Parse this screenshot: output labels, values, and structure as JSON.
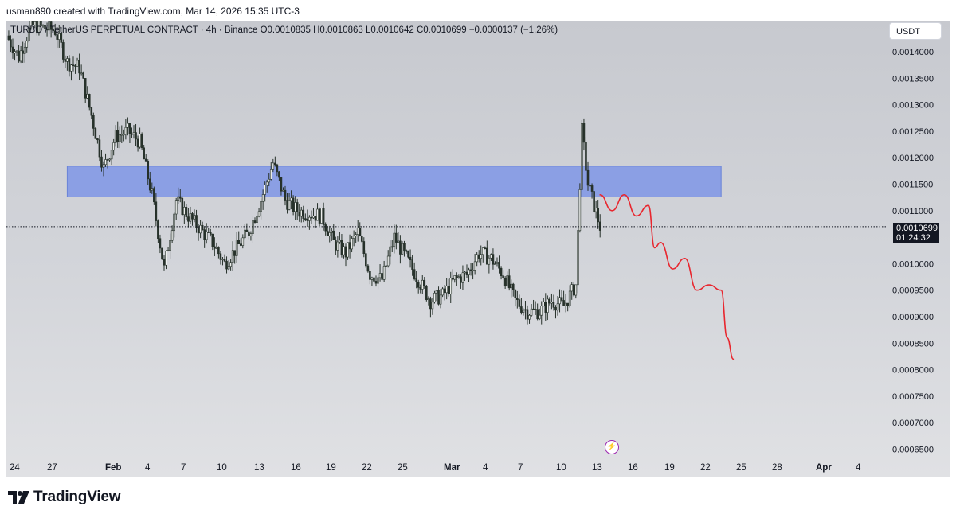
{
  "caption": "usman890 created with TradingView.com, Mar 14, 2026 15:35 UTC-3",
  "header": {
    "symbol": "TURBO / TetherUS PERPETUAL CONTRACT · 4h · Binance",
    "open": "O0.0010835",
    "high": "H0.0010863",
    "low": "L0.0010642",
    "close": "C0.0010699",
    "change": "−0.0000137 (−1.26%)"
  },
  "currency_button": "USDT",
  "last_price": {
    "price": "0.0010699",
    "countdown": "01:24:32"
  },
  "brand": "TradingView",
  "colors": {
    "candle": "#26312a",
    "zone": "#7f97e6",
    "projection": "#e8262e",
    "flash": "#9c27b0"
  },
  "chart_data": {
    "type": "candlestick",
    "x_labels": [
      "24",
      "27",
      "Feb",
      "4",
      "7",
      "10",
      "13",
      "16",
      "19",
      "22",
      "25",
      "Mar",
      "4",
      "7",
      "10",
      "13",
      "16",
      "19",
      "22",
      "25",
      "28",
      "Apr",
      "4"
    ],
    "y_ticks": [
      "0.0014000",
      "0.0013500",
      "0.0013000",
      "0.0012500",
      "0.0012000",
      "0.0011500",
      "0.0011000",
      "0.0010000",
      "0.0009500",
      "0.0009000",
      "0.0008500",
      "0.0008000",
      "0.0007500",
      "0.0007000",
      "0.0006500"
    ],
    "ylim": [
      0.00064,
      0.00144
    ],
    "last_close": 0.0010699,
    "resistance_zone": {
      "low": 0.001126,
      "high": 0.001184,
      "from": "Jan 29",
      "to": "Mar 24"
    },
    "price_path": [
      [
        "Jan 24",
        0.00143
      ],
      [
        "Jan 25",
        0.00139
      ],
      [
        "Jan 26",
        0.00145
      ],
      [
        "Jan 28",
        0.00144
      ],
      [
        "Jan 29",
        0.00138
      ],
      [
        "Jan 30",
        0.00137
      ],
      [
        "Jan 31",
        0.00128
      ],
      [
        "Feb 1",
        0.00118
      ],
      [
        "Feb 2",
        0.00124
      ],
      [
        "Feb 3",
        0.00125
      ],
      [
        "Feb 4",
        0.00123
      ],
      [
        "Feb 5",
        0.00113
      ],
      [
        "Feb 6",
        0.00099
      ],
      [
        "Feb 7",
        0.00112
      ],
      [
        "Feb 8",
        0.00109
      ],
      [
        "Feb 10",
        0.00104
      ],
      [
        "Feb 11",
        0.001
      ],
      [
        "Feb 13",
        0.00106
      ],
      [
        "Feb 14",
        0.00112
      ],
      [
        "Feb 15",
        0.00119
      ],
      [
        "Feb 16",
        0.00112
      ],
      [
        "Feb 17",
        0.0011
      ],
      [
        "Feb 19",
        0.00109
      ],
      [
        "Feb 20",
        0.00104
      ],
      [
        "Feb 21",
        0.00102
      ],
      [
        "Feb 22",
        0.00106
      ],
      [
        "Feb 23",
        0.00098
      ],
      [
        "Feb 24",
        0.00097
      ],
      [
        "Feb 25",
        0.00105
      ],
      [
        "Feb 26",
        0.00101
      ],
      [
        "Feb 27",
        0.00097
      ],
      [
        "Feb 28",
        0.00093
      ],
      [
        "Mar 1",
        0.00094
      ],
      [
        "Mar 2",
        0.00097
      ],
      [
        "Mar 3",
        0.00098
      ],
      [
        "Mar 4",
        0.00102
      ],
      [
        "Mar 5",
        0.00101
      ],
      [
        "Mar 6",
        0.00098
      ],
      [
        "Mar 7",
        0.00093
      ],
      [
        "Mar 8",
        0.00091
      ],
      [
        "Mar 9",
        0.00091
      ],
      [
        "Mar 10",
        0.00093
      ],
      [
        "Mar 11",
        0.00092
      ],
      [
        "Mar 12",
        0.00096
      ],
      [
        "Mar 12.5",
        0.00125
      ],
      [
        "Mar 13",
        0.00115
      ],
      [
        "Mar 14",
        0.00107
      ]
    ],
    "projection": [
      [
        "Mar 14",
        0.00113
      ],
      [
        "Mar 15",
        0.0011
      ],
      [
        "Mar 16",
        0.00113
      ],
      [
        "Mar 17",
        0.00109
      ],
      [
        "Mar 18",
        0.00111
      ],
      [
        "Mar 18.5",
        0.00103
      ],
      [
        "Mar 19",
        0.00104
      ],
      [
        "Mar 20",
        0.00099
      ],
      [
        "Mar 21",
        0.00101
      ],
      [
        "Mar 22",
        0.00095
      ],
      [
        "Mar 23",
        0.00096
      ],
      [
        "Mar 24",
        0.00095
      ],
      [
        "Mar 24.5",
        0.00086
      ],
      [
        "Mar 25",
        0.00082
      ]
    ]
  }
}
